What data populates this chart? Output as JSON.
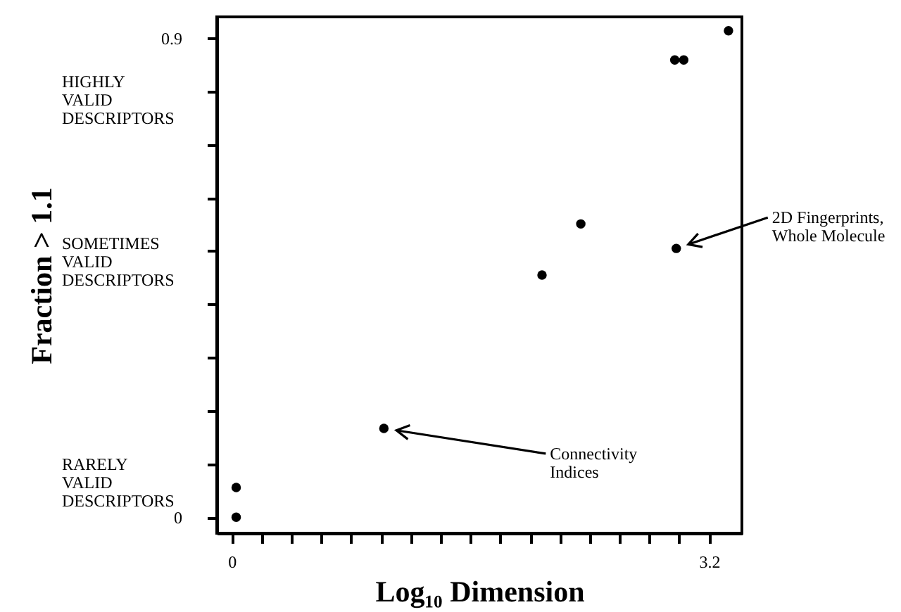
{
  "chart_data": {
    "type": "scatter",
    "xlabel": "Log₁₀ Dimension",
    "ylabel": "Fraction > 1.1",
    "x": [
      0.03,
      0.03,
      1.02,
      2.08,
      2.34,
      2.98,
      2.97,
      3.03,
      3.33
    ],
    "series": [
      {
        "color": "#000000",
        "values": [
          0.0,
          0.056,
          0.167,
          0.455,
          0.551,
          0.505,
          0.859,
          0.859,
          0.914
        ]
      }
    ],
    "marker": "circle",
    "xlim": [
      -0.1,
      3.42
    ],
    "ylim": [
      -0.03,
      0.94
    ],
    "xticks": [
      0,
      {
        "value": 0.2,
        "label": null
      },
      {
        "value": 0.4,
        "label": null
      },
      {
        "value": 0.6,
        "label": null
      },
      {
        "value": 0.8,
        "label": null
      },
      {
        "value": 1.0,
        "label": null
      },
      {
        "value": 1.2,
        "label": null
      },
      {
        "value": 1.4,
        "label": null
      },
      {
        "value": 1.6,
        "label": null
      },
      {
        "value": 1.8,
        "label": null
      },
      {
        "value": 2.0,
        "label": null
      },
      {
        "value": 2.2,
        "label": null
      },
      {
        "value": 2.4,
        "label": null
      },
      {
        "value": 2.6,
        "label": null
      },
      {
        "value": 2.8,
        "label": null
      },
      {
        "value": 3.0,
        "label": null
      },
      3.2
    ],
    "yticks": [
      0,
      {
        "value": 0.1,
        "label": null
      },
      {
        "value": 0.2,
        "label": null
      },
      {
        "value": 0.3,
        "label": null
      },
      {
        "value": 0.4,
        "label": null
      },
      {
        "value": 0.5,
        "label": null
      },
      {
        "value": 0.6,
        "label": null
      },
      {
        "value": 0.7,
        "label": null
      },
      {
        "value": 0.8,
        "label": null
      },
      0.9
    ],
    "annotations": [
      "HIGHLY\nVALID\nDESCRIPTORS",
      "SOMETIMES\nVALID\nDESCRIPTORS",
      "RARELY\nVALID\nDESCRIPTORS",
      {
        "text": "Connectivity\nIndices",
        "x": 1.02,
        "y": 0.167
      },
      {
        "text": "2D Fingerprints,\nWhole Molecule",
        "x": 2.98,
        "y": 0.505
      }
    ]
  }
}
